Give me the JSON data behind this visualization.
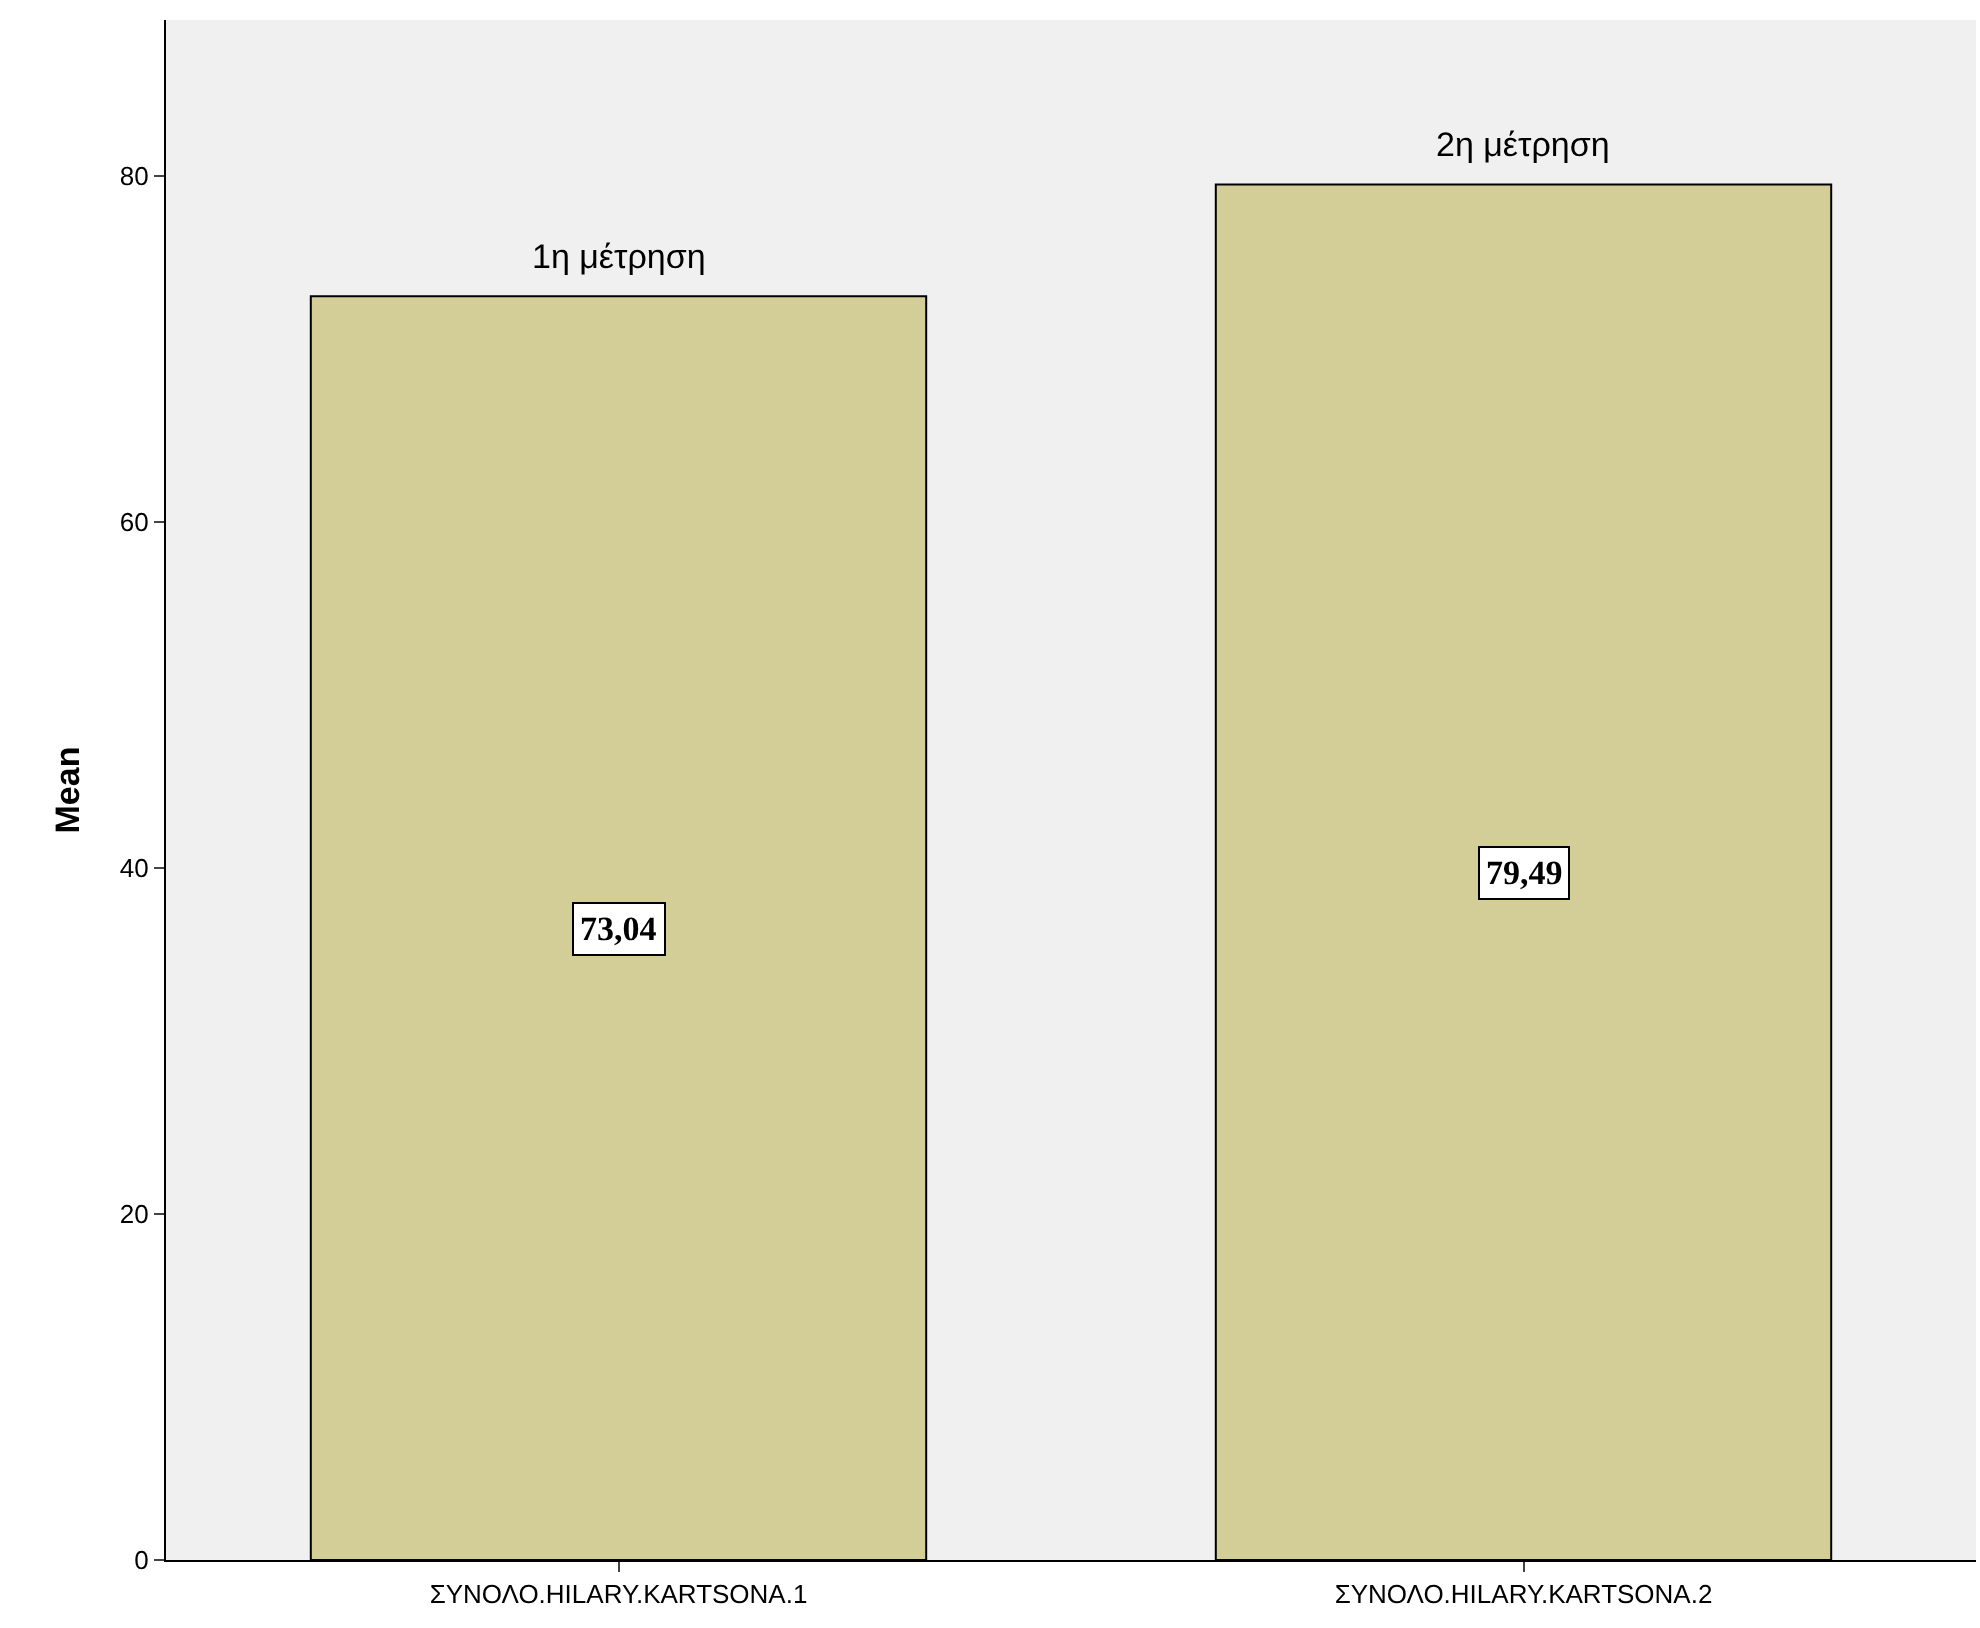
{
  "chart_data": {
    "type": "bar",
    "ylabel": "Mean",
    "categories": [
      "ΣΥΝΟΛΟ.HILARY.KARTSONA.1",
      "ΣΥΝΟΛΟ.HILARY.KARTSONA.2"
    ],
    "values": [
      73.04,
      79.49
    ],
    "value_labels": [
      "73,04",
      "79,49"
    ],
    "color": "#d3ce97",
    "annotations": [
      {
        "text": "1η μέτρηση",
        "x": "ΣΥΝΟΛΟ.HILARY.KARTSONA.1",
        "y": 73.04
      },
      {
        "text": "2η μέτρηση",
        "x": "ΣΥΝΟΛΟ.HILARY.KARTSONA.2",
        "y": 79.49
      }
    ],
    "ylim": [
      0,
      89
    ],
    "yticks": [
      0,
      20,
      40,
      60,
      80
    ],
    "grid": false,
    "legend": false
  }
}
